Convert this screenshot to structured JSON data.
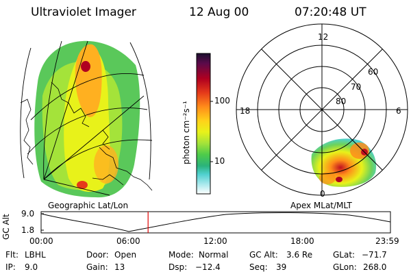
{
  "header": {
    "instrument": "Ultraviolet Imager",
    "date": "12 Aug 00",
    "time": "07:20:48 UT"
  },
  "colorbar": {
    "label": "photon cm⁻²s⁻¹",
    "ticks": [
      "100",
      "10"
    ],
    "colors": [
      "#1a0f2e",
      "#5a0a4a",
      "#b00020",
      "#e53a1a",
      "#ff8c1a",
      "#ffd21a",
      "#e8f21a",
      "#a4e33a",
      "#4ecb4a",
      "#2bb37a",
      "#4fd0cf",
      "#a8e8ec",
      "#ffffff"
    ]
  },
  "geo_map": {
    "label": "Geographic Lat/Lon"
  },
  "polar_map": {
    "label": "Apex MLat/MLT",
    "mlt_labels": {
      "top": "12",
      "left": "18",
      "right": "6",
      "bottom": "0"
    },
    "lat_labels": [
      "60",
      "70",
      "80"
    ]
  },
  "altitude_plot": {
    "ylabel": "GC Alt",
    "yticks": [
      "9.0",
      "1.8"
    ],
    "xticks": [
      "00:00",
      "06:00",
      "12:00",
      "18:00",
      "23:59"
    ],
    "current_marker_hours": 7.35,
    "marker_color": "#e00000"
  },
  "info": {
    "flt_label": "Flt:",
    "flt_value": "LBHL",
    "ip_label": "IP:",
    "ip_value": "9.0",
    "door_label": "Door:",
    "door_value": "Open",
    "gain_label": "Gain:",
    "gain_value": "13",
    "mode_label": "Mode:",
    "mode_value": "Normal",
    "dsp_label": "Dsp:",
    "dsp_value": "−12.4",
    "gcalt_label": "GC Alt:",
    "gcalt_value": "3.6 Re",
    "seq_label": "Seq:",
    "seq_value": "39",
    "glat_label": "GLat:",
    "glat_value": "−71.7",
    "glon_label": "GLon:",
    "glon_value": "268.0"
  }
}
